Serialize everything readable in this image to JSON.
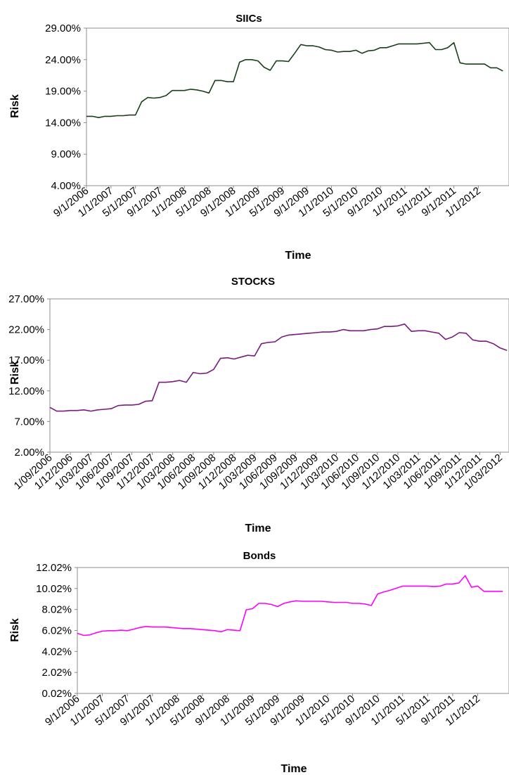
{
  "chart_data": [
    {
      "type": "line",
      "title": "SIICs",
      "xlabel": "Time",
      "ylabel": "Risk",
      "ylim": [
        0.04,
        0.29
      ],
      "yticks": [
        "4.00%",
        "9.00%",
        "14.00%",
        "19.00%",
        "24.00%",
        "29.00%"
      ],
      "xticks": [
        "9/1/2006",
        "1/1/2007",
        "5/1/2007",
        "9/1/2007",
        "1/1/2008",
        "5/1/2008",
        "9/1/2008",
        "1/1/2009",
        "5/1/2009",
        "9/1/2009",
        "1/1/2010",
        "5/1/2010",
        "9/1/2010",
        "1/1/2011",
        "5/1/2011",
        "9/1/2011",
        "1/1/2012"
      ],
      "grid": false,
      "color": "#1a3d1a",
      "series": [
        {
          "x": [
            "2006-09",
            "2006-10",
            "2006-11",
            "2006-12",
            "2007-01",
            "2007-02",
            "2007-03",
            "2007-04",
            "2007-05",
            "2007-06",
            "2007-07",
            "2007-08",
            "2007-09",
            "2007-10",
            "2007-11",
            "2007-12",
            "2008-01",
            "2008-02",
            "2008-03",
            "2008-04",
            "2008-05",
            "2008-06",
            "2008-07",
            "2008-08",
            "2008-09",
            "2008-10",
            "2008-11",
            "2008-12",
            "2009-01",
            "2009-02",
            "2009-03",
            "2009-04",
            "2009-05",
            "2009-06",
            "2009-07",
            "2009-08",
            "2009-09",
            "2009-10",
            "2009-11",
            "2009-12",
            "2010-01",
            "2010-02",
            "2010-03",
            "2010-04",
            "2010-05",
            "2010-06",
            "2010-07",
            "2010-08",
            "2010-09",
            "2010-10",
            "2010-11",
            "2010-12",
            "2011-01",
            "2011-02",
            "2011-03",
            "2011-04",
            "2011-05",
            "2011-06",
            "2011-07",
            "2011-08",
            "2011-09",
            "2011-10",
            "2011-11",
            "2011-12",
            "2012-01",
            "2012-02",
            "2012-03",
            "2012-04",
            "2012-05"
          ],
          "values": [
            0.15,
            0.15,
            0.148,
            0.15,
            0.15,
            0.151,
            0.151,
            0.152,
            0.152,
            0.173,
            0.18,
            0.179,
            0.18,
            0.183,
            0.191,
            0.191,
            0.191,
            0.193,
            0.192,
            0.19,
            0.187,
            0.207,
            0.207,
            0.205,
            0.205,
            0.236,
            0.24,
            0.24,
            0.238,
            0.228,
            0.223,
            0.238,
            0.238,
            0.237,
            0.25,
            0.264,
            0.262,
            0.262,
            0.26,
            0.256,
            0.255,
            0.252,
            0.253,
            0.253,
            0.255,
            0.25,
            0.254,
            0.255,
            0.259,
            0.259,
            0.262,
            0.265,
            0.265,
            0.265,
            0.265,
            0.266,
            0.267,
            0.256,
            0.256,
            0.259,
            0.267,
            0.235,
            0.233,
            0.233,
            0.233,
            0.233,
            0.227,
            0.227,
            0.222
          ]
        }
      ]
    },
    {
      "type": "line",
      "title": "STOCKS",
      "xlabel": "Time",
      "ylabel": "Risk",
      "ylim": [
        0.02,
        0.27
      ],
      "yticks": [
        "2.00%",
        "7.00%",
        "12.00%",
        "17.00%",
        "22.00%",
        "27.00%"
      ],
      "xticks": [
        "1/09/2006",
        "1/12/2006",
        "1/03/2007",
        "1/06/2007",
        "1/09/2007",
        "1/12/2007",
        "1/03/2008",
        "1/06/2008",
        "1/09/2008",
        "1/12/2008",
        "1/03/2009",
        "1/06/2009",
        "1/09/2009",
        "1/12/2009",
        "1/03/2010",
        "1/06/2010",
        "1/09/2010",
        "1/12/2010",
        "1/03/2011",
        "1/06/2011",
        "1/09/2011",
        "1/12/2011",
        "1/03/2012"
      ],
      "grid": false,
      "color": "#7a1a80",
      "series": [
        {
          "x": [
            "2006-09",
            "2006-10",
            "2006-11",
            "2006-12",
            "2007-01",
            "2007-02",
            "2007-03",
            "2007-04",
            "2007-05",
            "2007-06",
            "2007-07",
            "2007-08",
            "2007-09",
            "2007-10",
            "2007-11",
            "2007-12",
            "2008-01",
            "2008-02",
            "2008-03",
            "2008-04",
            "2008-05",
            "2008-06",
            "2008-07",
            "2008-08",
            "2008-09",
            "2008-10",
            "2008-11",
            "2008-12",
            "2009-01",
            "2009-02",
            "2009-03",
            "2009-04",
            "2009-05",
            "2009-06",
            "2009-07",
            "2009-08",
            "2009-09",
            "2009-10",
            "2009-11",
            "2009-12",
            "2010-01",
            "2010-02",
            "2010-03",
            "2010-04",
            "2010-05",
            "2010-06",
            "2010-07",
            "2010-08",
            "2010-09",
            "2010-10",
            "2010-11",
            "2010-12",
            "2011-01",
            "2011-02",
            "2011-03",
            "2011-04",
            "2011-05",
            "2011-06",
            "2011-07",
            "2011-08",
            "2011-09",
            "2011-10",
            "2011-11",
            "2011-12",
            "2012-01",
            "2012-02",
            "2012-03",
            "2012-04"
          ],
          "values": [
            0.093,
            0.087,
            0.087,
            0.088,
            0.088,
            0.089,
            0.087,
            0.089,
            0.09,
            0.091,
            0.096,
            0.097,
            0.097,
            0.098,
            0.103,
            0.104,
            0.134,
            0.134,
            0.135,
            0.137,
            0.134,
            0.15,
            0.148,
            0.149,
            0.155,
            0.173,
            0.174,
            0.172,
            0.175,
            0.178,
            0.177,
            0.197,
            0.199,
            0.2,
            0.208,
            0.211,
            0.212,
            0.213,
            0.214,
            0.215,
            0.216,
            0.216,
            0.217,
            0.22,
            0.218,
            0.218,
            0.218,
            0.22,
            0.221,
            0.225,
            0.225,
            0.226,
            0.229,
            0.217,
            0.218,
            0.218,
            0.216,
            0.214,
            0.204,
            0.208,
            0.215,
            0.214,
            0.203,
            0.201,
            0.201,
            0.197,
            0.19,
            0.186
          ]
        }
      ]
    },
    {
      "type": "line",
      "title": "Bonds",
      "xlabel": "Time",
      "ylabel": "Risk",
      "ylim": [
        0.0002,
        0.1202
      ],
      "yticks": [
        "0.02%",
        "2.02%",
        "4.02%",
        "6.02%",
        "8.02%",
        "10.02%",
        "12.02%"
      ],
      "xticks": [
        "9/1/2006",
        "1/1/2007",
        "5/1/2007",
        "9/1/2007",
        "1/1/2008",
        "5/1/2008",
        "9/1/2008",
        "1/1/2009",
        "5/1/2009",
        "9/1/2009",
        "1/1/2010",
        "5/1/2010",
        "9/1/2010",
        "1/1/2011",
        "5/1/2011",
        "9/1/2011",
        "1/1/2012"
      ],
      "grid": false,
      "color": "#ff00ff",
      "series": [
        {
          "x": [
            "2006-09",
            "2006-10",
            "2006-11",
            "2006-12",
            "2007-01",
            "2007-02",
            "2007-03",
            "2007-04",
            "2007-05",
            "2007-06",
            "2007-07",
            "2007-08",
            "2007-09",
            "2007-10",
            "2007-11",
            "2007-12",
            "2008-01",
            "2008-02",
            "2008-03",
            "2008-04",
            "2008-05",
            "2008-06",
            "2008-07",
            "2008-08",
            "2008-09",
            "2008-10",
            "2008-11",
            "2008-12",
            "2009-01",
            "2009-02",
            "2009-03",
            "2009-04",
            "2009-05",
            "2009-06",
            "2009-07",
            "2009-08",
            "2009-09",
            "2009-10",
            "2009-11",
            "2009-12",
            "2010-01",
            "2010-02",
            "2010-03",
            "2010-04",
            "2010-05",
            "2010-06",
            "2010-07",
            "2010-08",
            "2010-09",
            "2010-10",
            "2010-11",
            "2010-12",
            "2011-01",
            "2011-02",
            "2011-03",
            "2011-04",
            "2011-05",
            "2011-06",
            "2011-07",
            "2011-08",
            "2011-09",
            "2011-10",
            "2011-11",
            "2011-12",
            "2012-01",
            "2012-02",
            "2012-03",
            "2012-04",
            "2012-05"
          ],
          "values": [
            0.0575,
            0.0555,
            0.056,
            0.058,
            0.0595,
            0.06,
            0.06,
            0.0605,
            0.06,
            0.0615,
            0.063,
            0.064,
            0.0635,
            0.0635,
            0.0635,
            0.063,
            0.0625,
            0.062,
            0.062,
            0.0615,
            0.061,
            0.0605,
            0.06,
            0.059,
            0.061,
            0.0605,
            0.06,
            0.08,
            0.081,
            0.086,
            0.086,
            0.085,
            0.083,
            0.086,
            0.0875,
            0.0885,
            0.088,
            0.088,
            0.088,
            0.088,
            0.0875,
            0.087,
            0.087,
            0.087,
            0.086,
            0.086,
            0.0855,
            0.084,
            0.095,
            0.097,
            0.0985,
            0.1005,
            0.1025,
            0.1025,
            0.1025,
            0.1025,
            0.1025,
            0.102,
            0.1025,
            0.1045,
            0.1045,
            0.1055,
            0.1125,
            0.1015,
            0.1025,
            0.0975,
            0.0975,
            0.0975,
            0.0975
          ]
        }
      ]
    }
  ]
}
